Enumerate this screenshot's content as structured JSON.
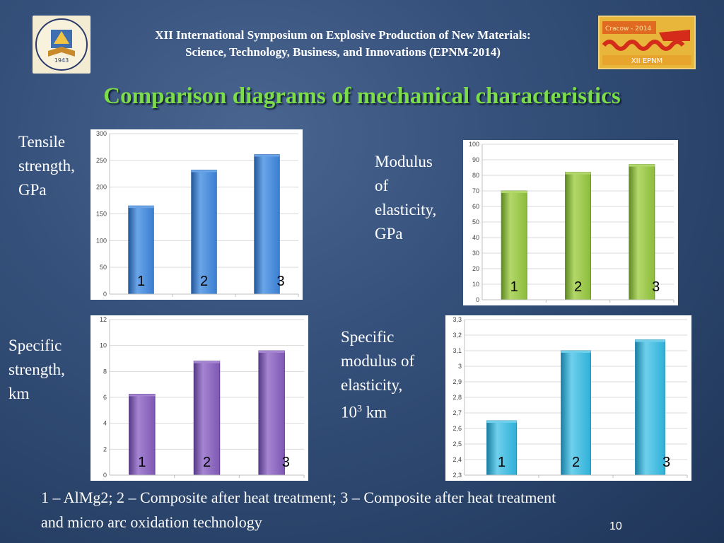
{
  "header": {
    "line1": "XII International Symposium  on Explosive Production of New Materials:",
    "line2": "Science, Technology, Business, and Innovations (EPNM-2014)"
  },
  "logos": {
    "left": {
      "text_top": "ПЕНЗЕНСКИЙ ГОСУДАРСТВЕННЫЙ УНИВЕРСИТЕТ",
      "year": "1943",
      "text_bottom": "PENZA STATE UNIVERSITY"
    },
    "right": {
      "top": "Cracow - 2014",
      "bottom": "XII EPNM"
    }
  },
  "title": "Comparison diagrams of mechanical characteristics",
  "labels": {
    "tensile": [
      "Tensile",
      "strength,",
      "GPa"
    ],
    "modulus": [
      "Modulus",
      "of",
      "elasticity,",
      "GPa"
    ],
    "specific_strength": [
      "Specific",
      "strength,",
      "km"
    ],
    "specific_modulus": {
      "lines": [
        "Specific",
        "modulus of",
        "elasticity,"
      ],
      "base": "10",
      "exp": "3",
      "unit": " km"
    }
  },
  "caption": {
    "line1": "1 – AlMg2; 2 – Composite after heat treatment; 3 – Composite after heat treatment",
    "line2": "and micro arc oxidation technology"
  },
  "slide_number": "10",
  "chart_data": [
    {
      "type": "bar",
      "categories": [
        "1",
        "2",
        "3"
      ],
      "values": [
        165,
        232,
        261
      ],
      "ylim": [
        0,
        300
      ],
      "yticks": [
        "0",
        "50",
        "100",
        "150",
        "200",
        "250",
        "300"
      ],
      "color": "#3b7fd1",
      "color_light": "#6aa5e8",
      "color_dark": "#23589a"
    },
    {
      "type": "bar",
      "categories": [
        "1",
        "2",
        "3"
      ],
      "values": [
        70,
        82,
        87
      ],
      "ylim": [
        0,
        100
      ],
      "yticks": [
        "0",
        "10",
        "20",
        "30",
        "40",
        "50",
        "60",
        "70",
        "80",
        "90",
        "100"
      ],
      "color": "#8cbc3a",
      "color_light": "#b3d86a",
      "color_dark": "#5f8a22"
    },
    {
      "type": "bar",
      "categories": [
        "1",
        "2",
        "3"
      ],
      "values": [
        6.25,
        8.8,
        9.6
      ],
      "ylim": [
        0,
        12
      ],
      "yticks": [
        "0",
        "2",
        "4",
        "6",
        "8",
        "10",
        "12"
      ],
      "color": "#7e57b3",
      "color_light": "#a585d2",
      "color_dark": "#573a85"
    },
    {
      "type": "bar",
      "categories": [
        "1",
        "2",
        "3"
      ],
      "values": [
        2.65,
        3.1,
        3.17
      ],
      "ylim": [
        2.3,
        3.3
      ],
      "yticks": [
        "2,3",
        "2,4",
        "2,5",
        "2,6",
        "2,7",
        "2,8",
        "2,9",
        "3",
        "3,1",
        "3,2",
        "3,3"
      ],
      "color": "#2fb0d8",
      "color_light": "#6fd0ec",
      "color_dark": "#1a7fa3"
    }
  ]
}
